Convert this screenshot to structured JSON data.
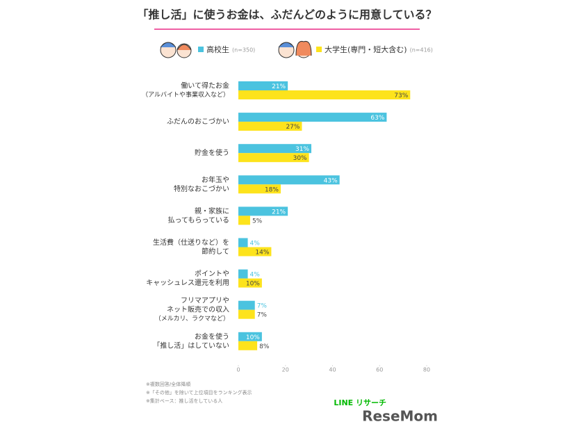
{
  "chart_data": {
    "type": "hbar",
    "title": "「推し活」に使うお金は、ふだんどのように用意している？",
    "categories": [
      [
        "働いて得たお金",
        "（アルバイトや事業収入など）"
      ],
      [
        "ふだんのおこづかい"
      ],
      [
        "貯金を使う"
      ],
      [
        "お年玉や",
        "特別なおこづかい"
      ],
      [
        "親・家族に",
        "払ってもらっている"
      ],
      [
        "生活費（仕送りなど）を",
        "節約して"
      ],
      [
        "ポイントや",
        "キャッシュレス還元を利用"
      ],
      [
        "フリマアプリや",
        "ネット販売での収入",
        "（メルカリ、ラクマなど）"
      ],
      [
        "お金を使う",
        "「推し活」はしていない"
      ]
    ],
    "series": [
      {
        "name": "高校生",
        "sample": "(n=350)",
        "color": "#4bc3df",
        "values": [
          21,
          63,
          31,
          43,
          21,
          4,
          4,
          7,
          10
        ],
        "value_labels": [
          "21%",
          "63%",
          "31%",
          "43%",
          "21%",
          "4%",
          "4%",
          "7%",
          "10%"
        ]
      },
      {
        "name": "大学生(専門・短大含む)",
        "sample": "(n=416)",
        "color": "#fde31c",
        "values": [
          73,
          27,
          30,
          18,
          5,
          14,
          10,
          7,
          8
        ],
        "value_labels": [
          "73%",
          "27%",
          "30%",
          "18%",
          "5%",
          "14%",
          "10%",
          "7%",
          "8%"
        ]
      }
    ],
    "xlim": [
      0,
      80
    ],
    "xticks": [
      0,
      20,
      40,
      60,
      80
    ],
    "footnotes": [
      "※複数回答/全体降順",
      "※「その他」を除いて上位項目をランキング表示",
      "※集計ベース：推し活をしている人"
    ],
    "source": "LINE リサーチ",
    "publisher": "ReseMom"
  }
}
